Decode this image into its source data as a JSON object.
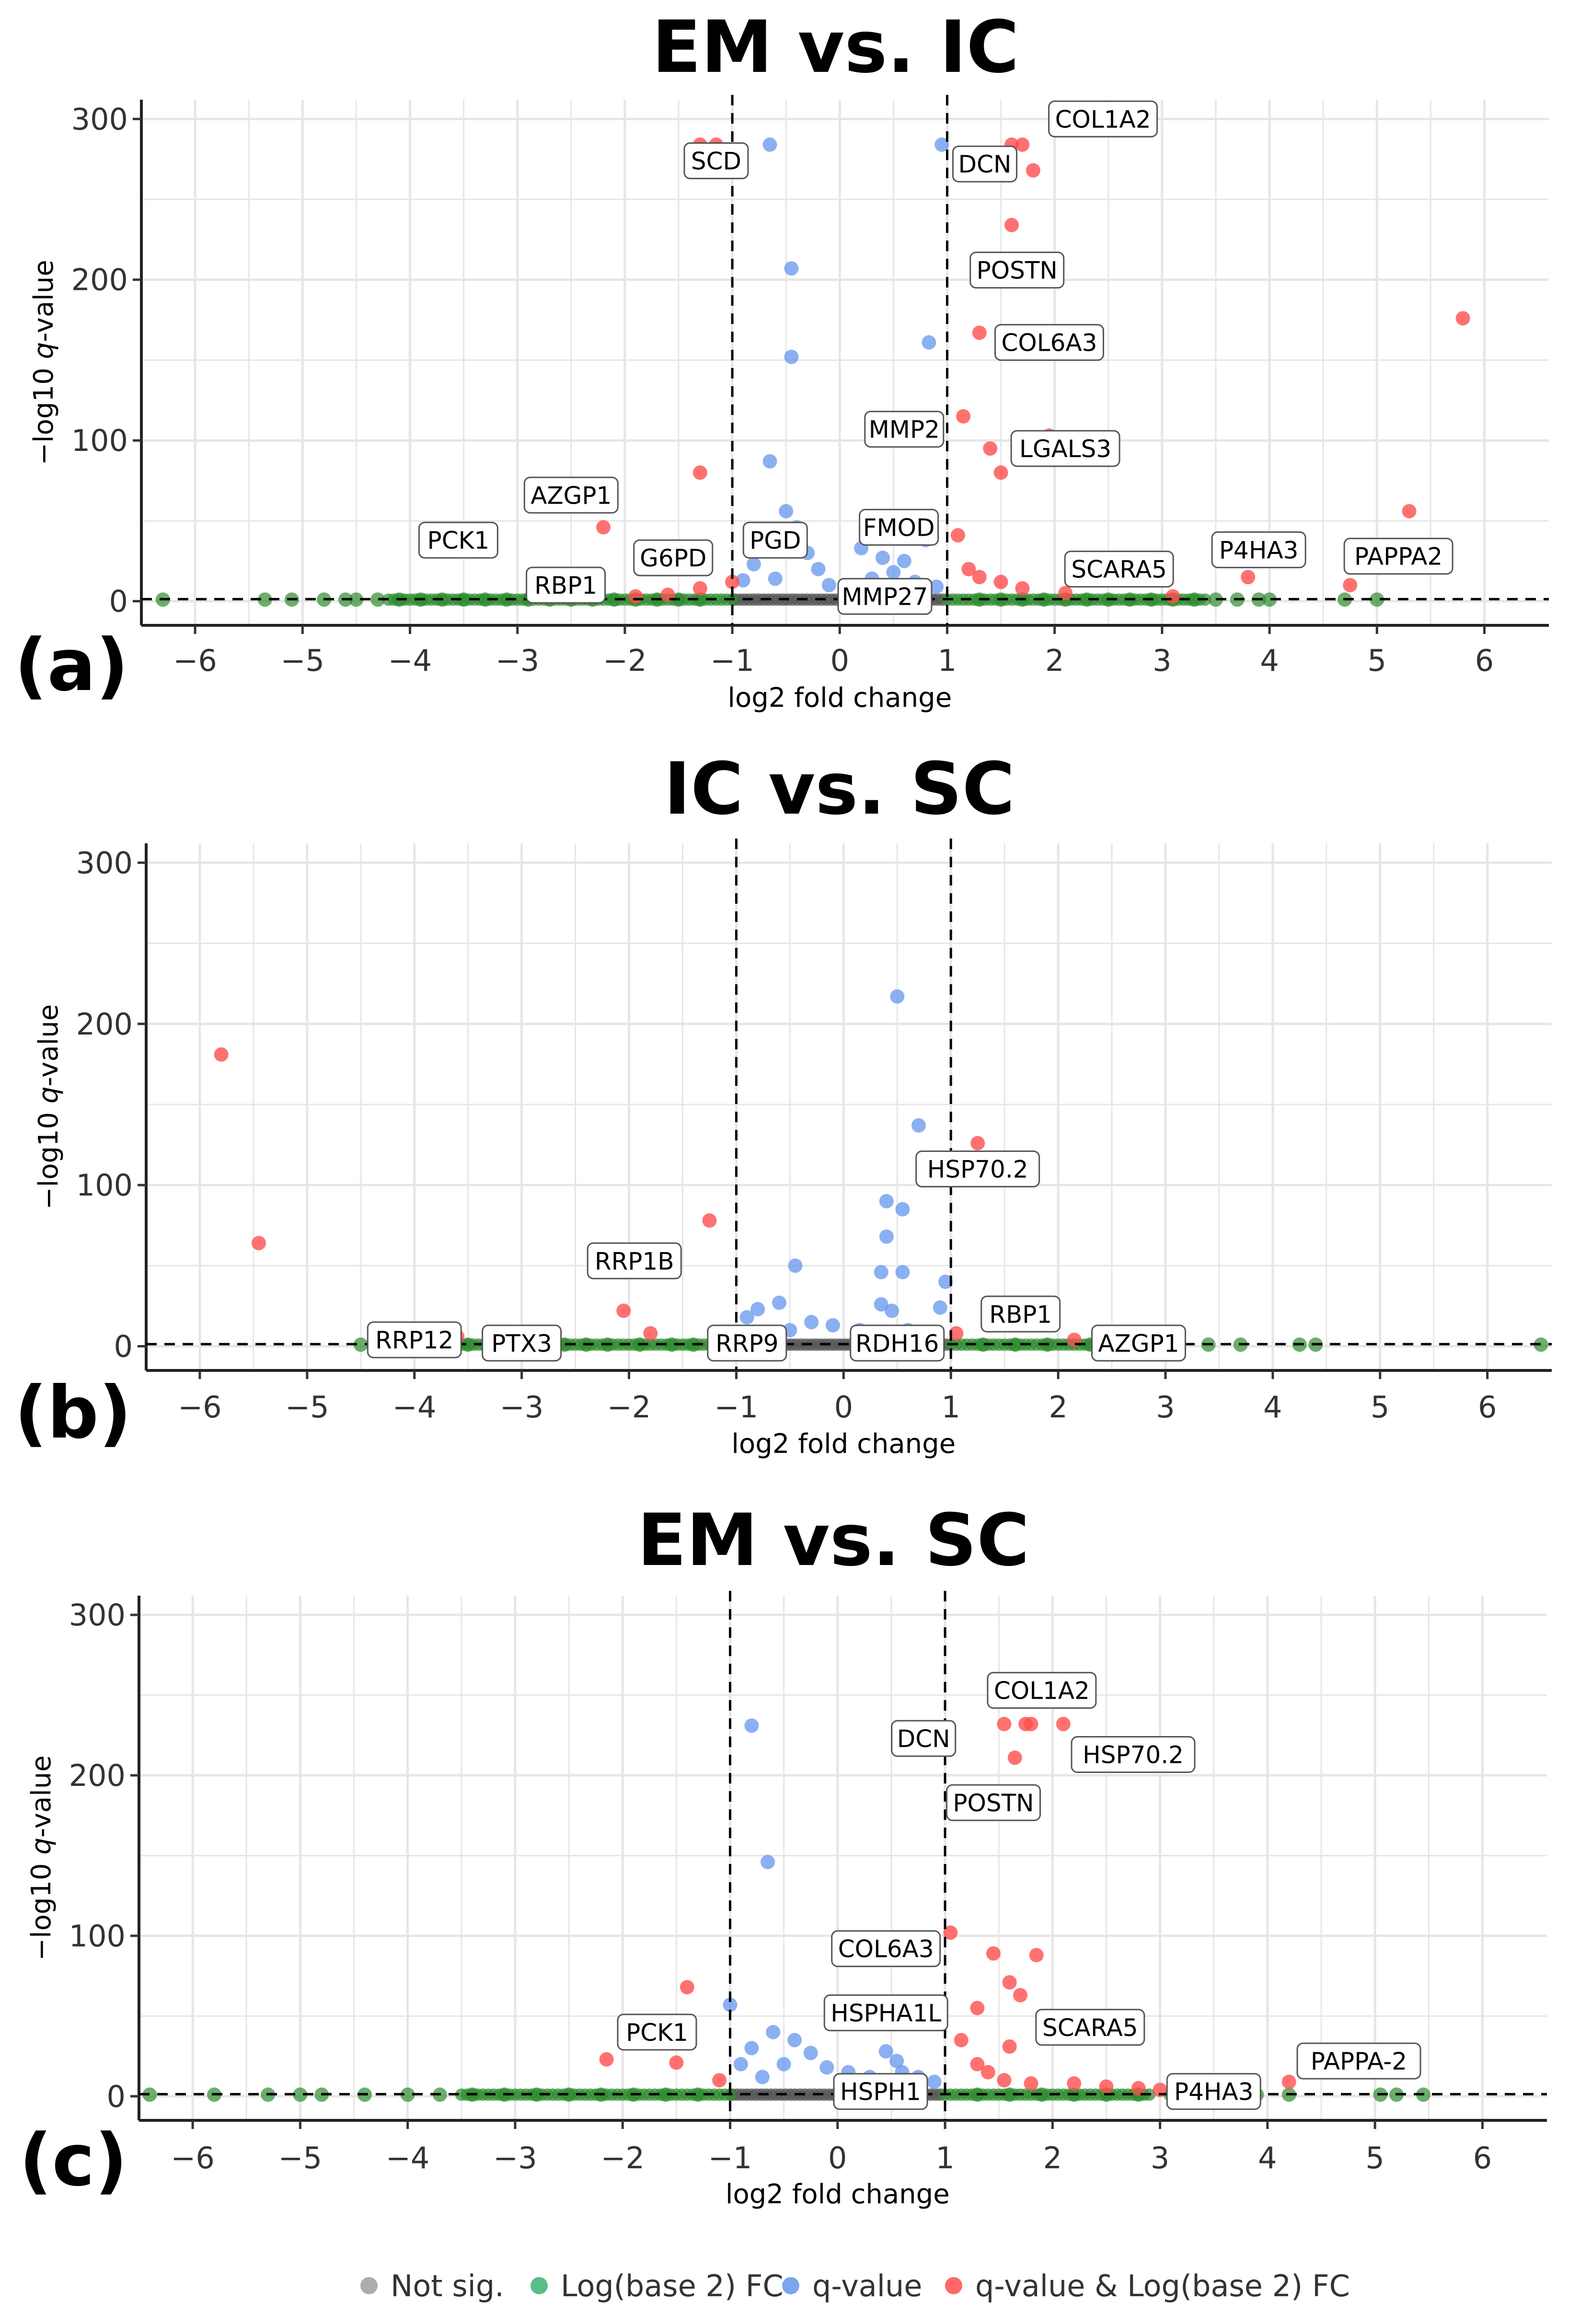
{
  "chart_data": [
    {
      "type": "scatter",
      "panel_label": "(a)",
      "title": "EM vs. IC",
      "xlabel": "log2 fold change",
      "ylabel_parts": [
        "−log10 ",
        "q",
        "-value"
      ],
      "xlim": [
        -6.5,
        6.6
      ],
      "ylim": [
        -15,
        312
      ],
      "xticks": [
        -6,
        -5,
        -4,
        -3,
        -2,
        -1,
        0,
        1,
        2,
        3,
        4,
        5,
        6
      ],
      "xtick_labels": [
        "−6",
        "−5",
        "−4",
        "−3",
        "−2",
        "−1",
        "0",
        "1",
        "2",
        "3",
        "4",
        "5",
        "6"
      ],
      "yticks": [
        0,
        100,
        200,
        300
      ],
      "ytick_labels": [
        "0",
        "100",
        "200",
        "300"
      ],
      "vlines": [
        -1,
        1
      ],
      "hline": 1.3,
      "points": {
        "red": [
          [
            -1.3,
            284
          ],
          [
            -1.15,
            284
          ],
          [
            1.6,
            284
          ],
          [
            1.7,
            284
          ],
          [
            1.8,
            268
          ],
          [
            1.6,
            234
          ],
          [
            1.3,
            167
          ],
          [
            1.15,
            115
          ],
          [
            1.95,
            103
          ],
          [
            1.4,
            95
          ],
          [
            1.5,
            80
          ],
          [
            -1.3,
            80
          ],
          [
            5.8,
            176
          ],
          [
            5.3,
            56
          ],
          [
            4.75,
            10
          ],
          [
            3.8,
            15
          ],
          [
            -2.2,
            46
          ],
          [
            -1.0,
            12
          ],
          [
            -1.3,
            8
          ],
          [
            1.1,
            41
          ],
          [
            1.2,
            20
          ],
          [
            1.3,
            15
          ],
          [
            1.5,
            12
          ],
          [
            1.7,
            8
          ],
          [
            2.1,
            5
          ],
          [
            3.1,
            3
          ],
          [
            -1.6,
            4
          ],
          [
            -1.9,
            3
          ]
        ],
        "blue": [
          [
            -0.65,
            284
          ],
          [
            0.95,
            284
          ],
          [
            -0.45,
            207
          ],
          [
            -0.45,
            152
          ],
          [
            0.83,
            161
          ],
          [
            -0.65,
            87
          ],
          [
            -0.5,
            56
          ],
          [
            -0.4,
            46
          ],
          [
            -0.3,
            30
          ],
          [
            -0.2,
            20
          ],
          [
            0.2,
            33
          ],
          [
            0.4,
            27
          ],
          [
            0.6,
            25
          ],
          [
            0.8,
            38
          ],
          [
            0.5,
            18
          ],
          [
            0.3,
            14
          ],
          [
            -0.8,
            23
          ],
          [
            -0.9,
            13
          ],
          [
            -0.1,
            10
          ],
          [
            0.7,
            12
          ],
          [
            0.9,
            9
          ],
          [
            -0.6,
            14
          ]
        ],
        "green": [
          [
            -6.3,
            1
          ],
          [
            -5.35,
            1
          ],
          [
            -5.1,
            1
          ],
          [
            -4.8,
            1
          ],
          [
            -4.6,
            1
          ],
          [
            -4.5,
            1
          ],
          [
            -4.3,
            1
          ],
          [
            -4.1,
            1
          ],
          [
            -3.9,
            1
          ],
          [
            -3.7,
            1
          ],
          [
            -3.5,
            1
          ],
          [
            -3.3,
            1
          ],
          [
            -3.1,
            1
          ],
          [
            -2.9,
            1
          ],
          [
            -2.7,
            1
          ],
          [
            -2.5,
            1
          ],
          [
            -2.3,
            1
          ],
          [
            -2.1,
            1
          ],
          [
            -1.9,
            1
          ],
          [
            -1.7,
            1
          ],
          [
            -1.5,
            1
          ],
          [
            -1.3,
            1
          ],
          [
            1.3,
            1
          ],
          [
            1.5,
            1
          ],
          [
            1.7,
            1
          ],
          [
            1.9,
            1
          ],
          [
            2.1,
            1
          ],
          [
            2.3,
            1
          ],
          [
            2.5,
            1
          ],
          [
            2.7,
            1
          ],
          [
            2.9,
            1
          ],
          [
            3.1,
            1
          ],
          [
            3.3,
            1
          ],
          [
            3.5,
            1
          ],
          [
            3.7,
            1
          ],
          [
            3.9,
            1
          ],
          [
            4.0,
            1
          ],
          [
            4.7,
            1
          ],
          [
            5.0,
            1
          ]
        ]
      },
      "labels": [
        {
          "text": "SCD",
          "x": -1.15,
          "y": 274
        },
        {
          "text": "COL1A2",
          "x": 2.45,
          "y": 300
        },
        {
          "text": "DCN",
          "x": 1.35,
          "y": 272
        },
        {
          "text": "POSTN",
          "x": 1.65,
          "y": 206
        },
        {
          "text": "COL6A3",
          "x": 1.95,
          "y": 161
        },
        {
          "text": "MMP2",
          "x": 0.6,
          "y": 107
        },
        {
          "text": "LGALS3",
          "x": 2.1,
          "y": 95
        },
        {
          "text": "AZGP1",
          "x": -2.5,
          "y": 66
        },
        {
          "text": "PCK1",
          "x": -3.55,
          "y": 38
        },
        {
          "text": "G6PD",
          "x": -1.55,
          "y": 27
        },
        {
          "text": "PGD",
          "x": -0.6,
          "y": 38
        },
        {
          "text": "FMOD",
          "x": 0.55,
          "y": 46
        },
        {
          "text": "RBP1",
          "x": -2.55,
          "y": 10
        },
        {
          "text": "SCARA5",
          "x": 2.6,
          "y": 20
        },
        {
          "text": "P4HA3",
          "x": 3.9,
          "y": 32
        },
        {
          "text": "PAPPA2",
          "x": 5.2,
          "y": 28
        },
        {
          "text": "MMP27",
          "x": 0.42,
          "y": 3
        }
      ]
    },
    {
      "type": "scatter",
      "panel_label": "(b)",
      "title": "IC vs. SC",
      "xlabel": "log2 fold change",
      "ylabel_parts": [
        "−log10 ",
        "q",
        "-value"
      ],
      "xlim": [
        -6.5,
        6.6
      ],
      "ylim": [
        -15,
        312
      ],
      "xticks": [
        -6,
        -5,
        -4,
        -3,
        -2,
        -1,
        0,
        1,
        2,
        3,
        4,
        5,
        6
      ],
      "xtick_labels": [
        "−6",
        "−5",
        "−4",
        "−3",
        "−2",
        "−1",
        "0",
        "1",
        "2",
        "3",
        "4",
        "5",
        "6"
      ],
      "yticks": [
        0,
        100,
        200,
        300
      ],
      "ytick_labels": [
        "0",
        "100",
        "200",
        "300"
      ],
      "vlines": [
        -1,
        1
      ],
      "hline": 1.3,
      "points": {
        "red": [
          [
            -5.8,
            181
          ],
          [
            -5.45,
            64
          ],
          [
            -1.25,
            78
          ],
          [
            1.25,
            126
          ],
          [
            -2.05,
            22
          ],
          [
            -1.8,
            8
          ],
          [
            1.05,
            8
          ],
          [
            -3.6,
            6
          ],
          [
            2.15,
            4
          ]
        ],
        "blue": [
          [
            0.5,
            217
          ],
          [
            0.7,
            137
          ],
          [
            0.4,
            90
          ],
          [
            0.55,
            85
          ],
          [
            0.4,
            68
          ],
          [
            0.35,
            46
          ],
          [
            0.55,
            46
          ],
          [
            0.95,
            40
          ],
          [
            0.35,
            26
          ],
          [
            0.45,
            22
          ],
          [
            0.9,
            24
          ],
          [
            -0.45,
            50
          ],
          [
            -0.6,
            27
          ],
          [
            -0.8,
            23
          ],
          [
            -0.9,
            18
          ],
          [
            -0.3,
            15
          ],
          [
            -0.1,
            13
          ],
          [
            0.15,
            10
          ],
          [
            0.6,
            10
          ],
          [
            -0.5,
            10
          ]
        ],
        "green": [
          [
            -4.5,
            1
          ],
          [
            -4.1,
            1
          ],
          [
            -3.9,
            1
          ],
          [
            -3.5,
            1
          ],
          [
            -3.3,
            1
          ],
          [
            -3.0,
            1
          ],
          [
            -2.8,
            1
          ],
          [
            -2.6,
            1
          ],
          [
            -2.4,
            1
          ],
          [
            -2.2,
            1
          ],
          [
            -1.9,
            1
          ],
          [
            -1.6,
            1
          ],
          [
            -1.4,
            1
          ],
          [
            1.3,
            1
          ],
          [
            1.6,
            1
          ],
          [
            1.9,
            1
          ],
          [
            2.3,
            1
          ],
          [
            2.6,
            1
          ],
          [
            2.9,
            1
          ],
          [
            3.1,
            1
          ],
          [
            3.4,
            1
          ],
          [
            3.7,
            1
          ],
          [
            4.25,
            1
          ],
          [
            4.4,
            1
          ],
          [
            6.5,
            1
          ]
        ]
      },
      "labels": [
        {
          "text": "HSP70.2",
          "x": 1.25,
          "y": 110
        },
        {
          "text": "RRP1B",
          "x": -1.95,
          "y": 53
        },
        {
          "text": "RBP1",
          "x": 1.65,
          "y": 20
        },
        {
          "text": "RRP12",
          "x": -4.0,
          "y": 4
        },
        {
          "text": "PTX3",
          "x": -3.0,
          "y": 2
        },
        {
          "text": "RRP9",
          "x": -0.9,
          "y": 2
        },
        {
          "text": "RDH16",
          "x": 0.5,
          "y": 2
        },
        {
          "text": "AZGP1",
          "x": 2.75,
          "y": 2
        }
      ]
    },
    {
      "type": "scatter",
      "panel_label": "(c)",
      "title": "EM vs. SC",
      "xlabel": "log2 fold change",
      "ylabel_parts": [
        "−log10 ",
        "q",
        "-value"
      ],
      "xlim": [
        -6.5,
        6.6
      ],
      "ylim": [
        -15,
        312
      ],
      "xticks": [
        -6,
        -5,
        -4,
        -3,
        -2,
        -1,
        0,
        1,
        2,
        3,
        4,
        5,
        6
      ],
      "xtick_labels": [
        "−6",
        "−5",
        "−4",
        "−3",
        "−2",
        "−1",
        "0",
        "1",
        "2",
        "3",
        "4",
        "5",
        "6"
      ],
      "yticks": [
        0,
        100,
        200,
        300
      ],
      "ytick_labels": [
        "0",
        "100",
        "200",
        "300"
      ],
      "vlines": [
        -1,
        1
      ],
      "hline": 1.3,
      "points": {
        "red": [
          [
            1.55,
            232
          ],
          [
            1.8,
            232
          ],
          [
            1.75,
            232
          ],
          [
            2.1,
            232
          ],
          [
            1.65,
            211
          ],
          [
            1.05,
            102
          ],
          [
            1.45,
            89
          ],
          [
            1.85,
            88
          ],
          [
            1.6,
            71
          ],
          [
            1.7,
            63
          ],
          [
            1.3,
            55
          ],
          [
            -1.4,
            68
          ],
          [
            -2.15,
            23
          ],
          [
            -1.5,
            21
          ],
          [
            -1.1,
            10
          ],
          [
            4.2,
            9
          ],
          [
            1.15,
            35
          ],
          [
            1.6,
            31
          ],
          [
            1.3,
            20
          ],
          [
            1.4,
            15
          ],
          [
            1.55,
            10
          ],
          [
            1.8,
            8
          ],
          [
            2.2,
            8
          ],
          [
            2.5,
            6
          ],
          [
            3.0,
            4
          ],
          [
            2.8,
            5
          ]
        ],
        "blue": [
          [
            -0.8,
            231
          ],
          [
            -0.65,
            146
          ],
          [
            -1.0,
            57
          ],
          [
            -0.6,
            40
          ],
          [
            -0.4,
            35
          ],
          [
            -0.25,
            27
          ],
          [
            -0.8,
            30
          ],
          [
            -0.9,
            20
          ],
          [
            -0.5,
            20
          ],
          [
            -0.1,
            18
          ],
          [
            0.1,
            15
          ],
          [
            0.3,
            12
          ],
          [
            0.55,
            22
          ],
          [
            0.75,
            12
          ],
          [
            0.9,
            9
          ],
          [
            0.45,
            28
          ],
          [
            -0.7,
            12
          ],
          [
            0.6,
            15
          ]
        ],
        "green": [
          [
            -6.4,
            1
          ],
          [
            -5.8,
            1
          ],
          [
            -5.3,
            1
          ],
          [
            -5.0,
            1
          ],
          [
            -4.8,
            1
          ],
          [
            -4.4,
            1
          ],
          [
            -4.0,
            1
          ],
          [
            -3.7,
            1
          ],
          [
            -3.4,
            1
          ],
          [
            -3.1,
            1
          ],
          [
            -2.8,
            1
          ],
          [
            -2.5,
            1
          ],
          [
            -2.2,
            1
          ],
          [
            -1.9,
            1
          ],
          [
            -1.6,
            1
          ],
          [
            -1.3,
            1
          ],
          [
            1.3,
            1
          ],
          [
            1.6,
            1
          ],
          [
            1.9,
            1
          ],
          [
            2.2,
            1
          ],
          [
            2.5,
            1
          ],
          [
            2.8,
            1
          ],
          [
            3.1,
            1
          ],
          [
            3.4,
            1
          ],
          [
            3.7,
            1
          ],
          [
            3.9,
            1
          ],
          [
            4.2,
            1
          ],
          [
            5.05,
            1
          ],
          [
            5.2,
            1
          ],
          [
            5.45,
            1
          ]
        ]
      },
      "labels": [
        {
          "text": "COL1A2",
          "x": 1.9,
          "y": 253
        },
        {
          "text": "DCN",
          "x": 0.8,
          "y": 223
        },
        {
          "text": "HSP70.2",
          "x": 2.75,
          "y": 213
        },
        {
          "text": "POSTN",
          "x": 1.45,
          "y": 183
        },
        {
          "text": "COL6A3",
          "x": 0.45,
          "y": 92
        },
        {
          "text": "HSPHA1L",
          "x": 0.45,
          "y": 52
        },
        {
          "text": "SCARA5",
          "x": 2.35,
          "y": 43
        },
        {
          "text": "PCK1",
          "x": -1.68,
          "y": 40
        },
        {
          "text": "PAPPA-2",
          "x": 4.85,
          "y": 22
        },
        {
          "text": "HSPH1",
          "x": 0.4,
          "y": 3
        },
        {
          "text": "P4HA3",
          "x": 3.5,
          "y": 3
        }
      ]
    }
  ],
  "legend": {
    "position": "bottom",
    "items": [
      {
        "label": "Not sig.",
        "color": "#9e9e9e"
      },
      {
        "label": "Log(base 2) FC",
        "color": "#3cb371"
      },
      {
        "label": "q-value",
        "color": "#6495ed"
      },
      {
        "label": "q-value & Log(base 2) FC",
        "color": "#ff4d4d"
      }
    ]
  },
  "colors": {
    "red": "#ff4d4d",
    "blue": "#6495ed",
    "green": "#2e8b2e",
    "grey": "#555555",
    "grid": "#e6e6e6"
  }
}
